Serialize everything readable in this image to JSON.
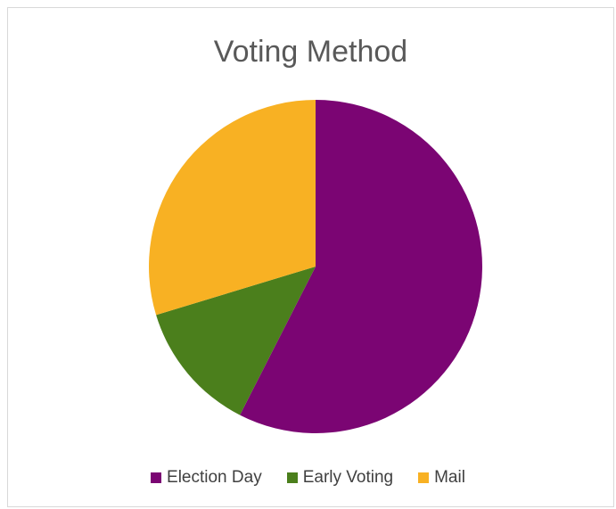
{
  "chart_data": {
    "type": "pie",
    "title": "Voting Method",
    "categories": [
      "Election Day",
      "Early Voting",
      "Mail"
    ],
    "values": [
      57.5,
      12.8,
      29.7
    ],
    "unit": "percent (estimated)",
    "colors": [
      "#7b0573",
      "#4b7f1c",
      "#f8b123"
    ],
    "start_angle": "12 o'clock, clockwise",
    "legend_position": "bottom"
  }
}
